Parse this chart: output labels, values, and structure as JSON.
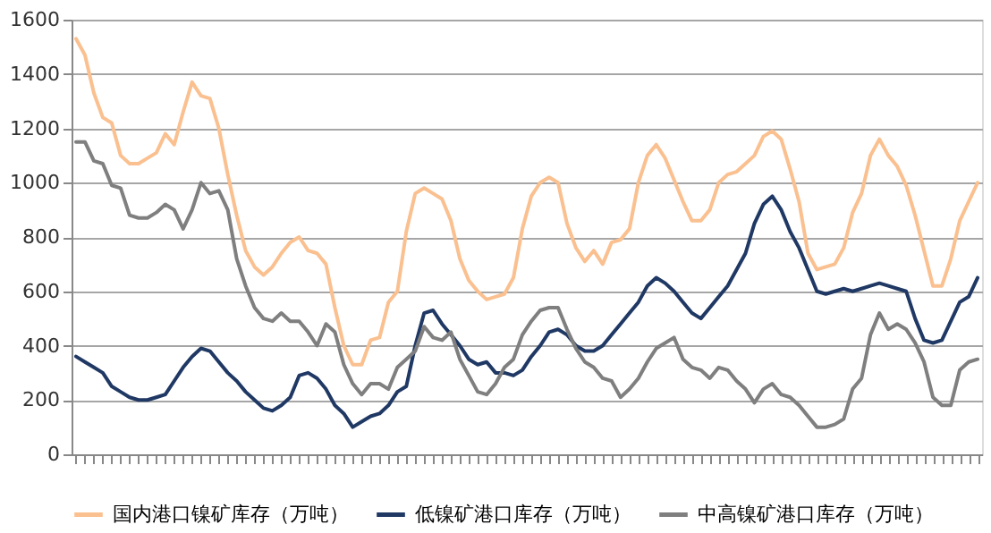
{
  "chart_data": {
    "type": "line",
    "categories": [
      null,
      null,
      null,
      null,
      null,
      null,
      null,
      null,
      null,
      null,
      null,
      null,
      null,
      null,
      null,
      null,
      null,
      null,
      null,
      null,
      null,
      null,
      null,
      null,
      null,
      null,
      null,
      null,
      null,
      null,
      null,
      null,
      null,
      null,
      null,
      null,
      null,
      null,
      null,
      null,
      null,
      null,
      null,
      null,
      null,
      null,
      null,
      null,
      null,
      null,
      null,
      null,
      null,
      null,
      null,
      null,
      null,
      null,
      null,
      null,
      null,
      null,
      null,
      null,
      null,
      null,
      null,
      null,
      null,
      null,
      null,
      null,
      null,
      null,
      null,
      null,
      null,
      null,
      null,
      null,
      null,
      null,
      null,
      null,
      null,
      null,
      null,
      null,
      null,
      null,
      null,
      null,
      null,
      null,
      null,
      null,
      null,
      null,
      null,
      null,
      null,
      null
    ],
    "series": [
      {
        "name": "国内港口镍矿库存（万吨）",
        "color": "#fac090",
        "values": [
          1530,
          1470,
          1330,
          1240,
          1220,
          1100,
          1070,
          1070,
          1090,
          1110,
          1180,
          1140,
          1260,
          1370,
          1320,
          1310,
          1200,
          1030,
          880,
          750,
          690,
          660,
          690,
          740,
          780,
          800,
          750,
          740,
          700,
          540,
          400,
          330,
          330,
          420,
          430,
          560,
          600,
          820,
          960,
          980,
          960,
          940,
          860,
          720,
          640,
          600,
          570,
          580,
          590,
          650,
          830,
          950,
          1000,
          1020,
          1000,
          850,
          760,
          710,
          750,
          700,
          780,
          790,
          830,
          1000,
          1100,
          1140,
          1090,
          1010,
          930,
          860,
          860,
          900,
          1000,
          1030,
          1040,
          1070,
          1100,
          1170,
          1190,
          1160,
          1050,
          930,
          740,
          680,
          690,
          700,
          760,
          890,
          960,
          1100,
          1160,
          1100,
          1060,
          990,
          880,
          750,
          620,
          620,
          720,
          860,
          930,
          1000
        ]
      },
      {
        "name": "低镍矿港口库存（万吨）",
        "color": "#1f3864",
        "values": [
          360,
          340,
          320,
          300,
          250,
          230,
          210,
          200,
          200,
          210,
          220,
          270,
          320,
          360,
          390,
          380,
          340,
          300,
          270,
          230,
          200,
          170,
          160,
          180,
          210,
          290,
          300,
          280,
          240,
          180,
          150,
          100,
          120,
          140,
          150,
          180,
          230,
          250,
          400,
          520,
          530,
          480,
          440,
          400,
          350,
          330,
          340,
          300,
          300,
          290,
          310,
          360,
          400,
          450,
          460,
          440,
          400,
          380,
          380,
          400,
          440,
          480,
          520,
          560,
          620,
          650,
          630,
          600,
          560,
          520,
          500,
          540,
          580,
          620,
          680,
          740,
          850,
          920,
          950,
          900,
          820,
          760,
          680,
          600,
          590,
          600,
          610,
          600,
          610,
          620,
          630,
          620,
          610,
          600,
          500,
          420,
          410,
          420,
          490,
          560,
          580,
          650
        ]
      },
      {
        "name": "中高镍矿港口库存（万吨）",
        "color": "#7f7f7f",
        "values": [
          1150,
          1150,
          1080,
          1070,
          990,
          980,
          880,
          870,
          870,
          890,
          920,
          900,
          830,
          900,
          1000,
          960,
          970,
          900,
          720,
          620,
          540,
          500,
          490,
          520,
          490,
          490,
          450,
          400,
          480,
          450,
          330,
          260,
          220,
          260,
          260,
          240,
          320,
          350,
          380,
          470,
          430,
          420,
          450,
          350,
          290,
          230,
          220,
          260,
          320,
          350,
          440,
          490,
          530,
          540,
          540,
          460,
          390,
          340,
          320,
          280,
          270,
          210,
          240,
          280,
          340,
          390,
          410,
          430,
          350,
          320,
          310,
          280,
          320,
          310,
          270,
          240,
          190,
          240,
          260,
          220,
          210,
          180,
          140,
          100,
          100,
          110,
          130,
          240,
          280,
          440,
          520,
          460,
          480,
          460,
          410,
          340,
          210,
          180,
          180,
          310,
          340,
          350
        ]
      }
    ],
    "ylim": [
      0,
      1600
    ],
    "yticks": [
      0,
      200,
      400,
      600,
      800,
      1000,
      1200,
      1400,
      1600
    ],
    "grid": "y",
    "legend": "bottom",
    "tick_labels": "y",
    "line_style": "solid",
    "marker": "none"
  }
}
